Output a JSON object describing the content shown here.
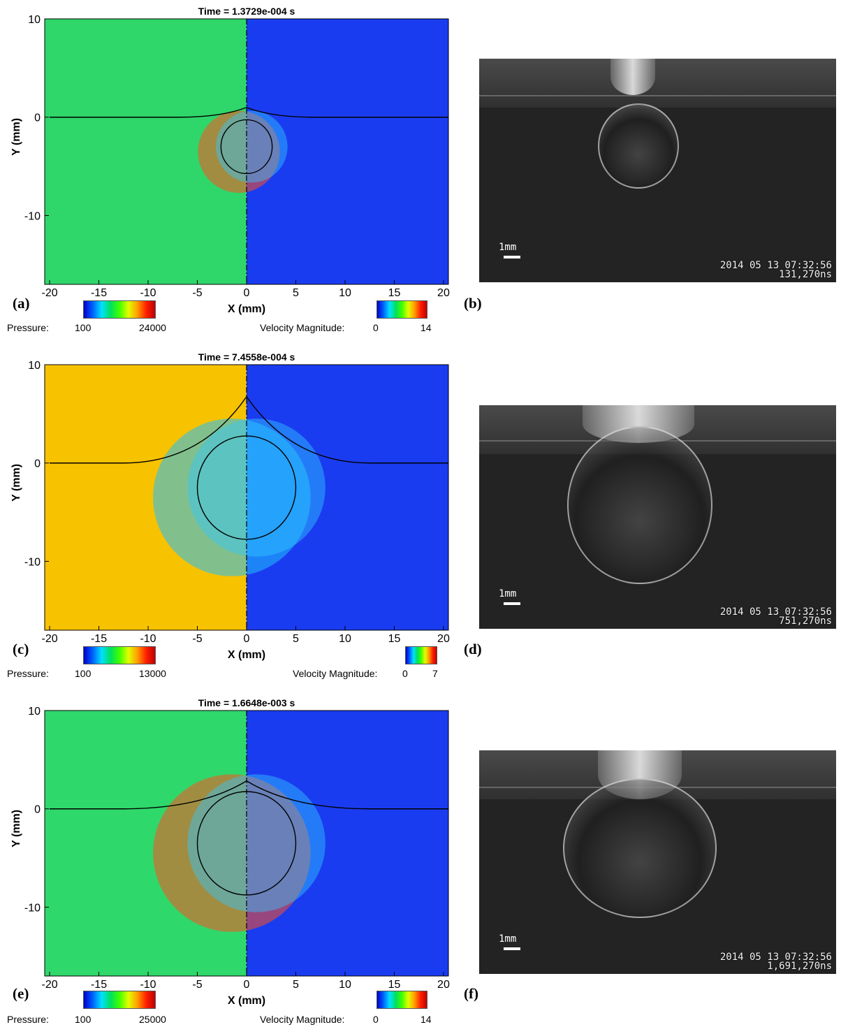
{
  "panels": [
    {
      "title": "Time = 1.3729e-004 s",
      "label_left": "(a)",
      "label_right": "(b)",
      "pressure_label": "Pressure:",
      "pressure_min": "100",
      "pressure_max": "24000",
      "velocity_label": "Velocity Magnitude:",
      "velocity_min": "0",
      "velocity_max": "14",
      "photo_stamp_line1": "2014 05 13 07:32:56",
      "photo_stamp_line2": "131,270ns",
      "scale_label": "1mm"
    },
    {
      "title": "Time = 7.4558e-004 s",
      "label_left": "(c)",
      "label_right": "(d)",
      "pressure_label": "Pressure:",
      "pressure_min": "100",
      "pressure_max": "13000",
      "velocity_label": "Velocity Magnitude:",
      "velocity_min": "0",
      "velocity_max": "7",
      "photo_stamp_line1": "2014 05 13 07:32:56",
      "photo_stamp_line2": "751,270ns",
      "scale_label": "1mm"
    },
    {
      "title": "Time = 1.6648e-003 s",
      "label_left": "(e)",
      "label_right": "(f)",
      "pressure_label": "Pressure:",
      "pressure_min": "100",
      "pressure_max": "25000",
      "velocity_label": "Velocity Magnitude:",
      "velocity_min": "0",
      "velocity_max": "14",
      "photo_stamp_line1": "2014 05 13 07:32:56",
      "photo_stamp_line2": "1,691,270ns",
      "scale_label": "1mm"
    }
  ],
  "chart_data": [
    {
      "type": "heatmap",
      "xlabel": "X (mm)",
      "ylabel": "Y (mm)",
      "xlim": [
        -20.5,
        20.5
      ],
      "ylim": [
        -17,
        10
      ],
      "x_ticks": [
        -20,
        -15,
        -10,
        -5,
        0,
        5,
        10,
        15,
        20
      ],
      "y_ticks": [
        10,
        0,
        -10
      ],
      "interface_y0": 0,
      "bubble_center": [
        0,
        -3.0
      ],
      "bubble_radius": 2.6
    },
    {
      "type": "heatmap",
      "xlabel": "X (mm)",
      "ylabel": "Y (mm)",
      "xlim": [
        -20.5,
        20.5
      ],
      "ylim": [
        -17,
        10
      ],
      "x_ticks": [
        -20,
        -15,
        -10,
        -5,
        0,
        5,
        10,
        15,
        20
      ],
      "y_ticks": [
        10,
        0,
        -10
      ],
      "interface_y0": 0,
      "bubble_center": [
        0,
        -2.5
      ],
      "bubble_radius": 5.0
    },
    {
      "type": "heatmap",
      "xlabel": "X (mm)",
      "ylabel": "Y (mm)",
      "xlim": [
        -20.5,
        20.5
      ],
      "ylim": [
        -17,
        10
      ],
      "x_ticks": [
        -20,
        -15,
        -10,
        -5,
        0,
        5,
        10,
        15,
        20
      ],
      "y_ticks": [
        10,
        0,
        -10
      ],
      "interface_y0": 0,
      "bubble_center": [
        0,
        -3.5
      ],
      "bubble_radius": 5.0
    }
  ]
}
